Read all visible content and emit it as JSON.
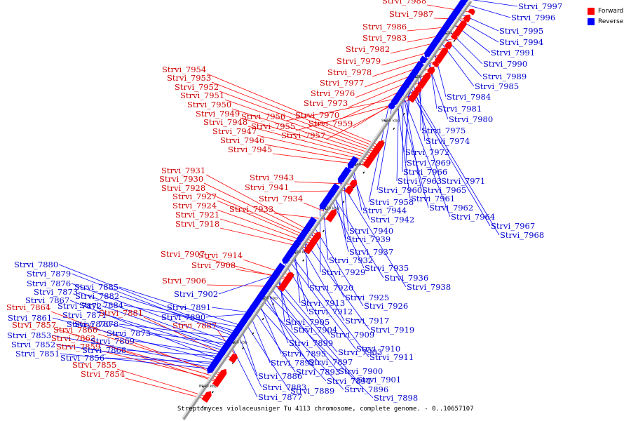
{
  "legend": [
    {
      "label": "Forward",
      "color": "#ff0000"
    },
    {
      "label": "Reverse",
      "color": "#0000ff"
    }
  ],
  "caption": "Streptomyces violaceusniger Tu 4113 chromosome, complete genome. - 0..10657107",
  "colors": {
    "forward": "#ff0000",
    "reverse": "#0000ff",
    "axis": "#999999",
    "forward_text": "#cc0000",
    "reverse_text": "#0000cc"
  },
  "ticks": [
    "8940 kbp",
    "8960 kbp",
    "8980 kbp",
    "9000 kbp",
    "9020 kbp",
    "9040 kbp",
    "9060 kbp",
    "9080 kbp",
    "9100 kbp",
    "9120 kbp"
  ],
  "forward_genes": [
    "Strvi_7988",
    "Strvi_7987",
    "Strvi_7986",
    "Strvi_7983",
    "Strvi_7982",
    "Strvi_7979",
    "Strvi_7978",
    "Strvi_7977",
    "Strvi_7976",
    "Strvi_7973",
    "Strvi_7970",
    "Strvi_7959",
    "Strvi_7957",
    "Strvi_7956",
    "Strvi_7955",
    "Strvi_7954",
    "Strvi_7953",
    "Strvi_7952",
    "Strvi_7951",
    "Strvi_7950",
    "Strvi_7949",
    "Strvi_7948",
    "Strvi_7947",
    "Strvi_7946",
    "Strvi_7945",
    "Strvi_7943",
    "Strvi_7941",
    "Strvi_7934",
    "Strvi_7933",
    "Strvi_7931",
    "Strvi_7930",
    "Strvi_7928",
    "Strvi_7927",
    "Strvi_7924",
    "Strvi_7921",
    "Strvi_7918",
    "Strvi_7914",
    "Strvi_7908",
    "Strvi_7907",
    "Strvi_7906",
    "Strvi_7887",
    "Strvi_7881",
    "Strvi_7866",
    "Strvi_7864",
    "Strvi_7862",
    "Strvi_7859",
    "Strvi_7857",
    "Strvi_7855",
    "Strvi_7854"
  ],
  "reverse_genes": [
    "Strvi_7997",
    "Strvi_7996",
    "Strvi_7995",
    "Strvi_7994",
    "Strvi_7991",
    "Strvi_7990",
    "Strvi_7989",
    "Strvi_7985",
    "Strvi_7984",
    "Strvi_7981",
    "Strvi_7980",
    "Strvi_7975",
    "Strvi_7974",
    "Strvi_7972",
    "Strvi_7971",
    "Strvi_7969",
    "Strvi_7968",
    "Strvi_7967",
    "Strvi_7966",
    "Strvi_7965",
    "Strvi_7964",
    "Strvi_7963",
    "Strvi_7962",
    "Strvi_7961",
    "Strvi_7960",
    "Strvi_7958",
    "Strvi_7944",
    "Strvi_7942",
    "Strvi_7940",
    "Strvi_7939",
    "Strvi_7938",
    "Strvi_7937",
    "Strvi_7936",
    "Strvi_7935",
    "Strvi_7932",
    "Strvi_7929",
    "Strvi_7926",
    "Strvi_7925",
    "Strvi_7920",
    "Strvi_7919",
    "Strvi_7917",
    "Strvi_7913",
    "Strvi_7912",
    "Strvi_7911",
    "Strvi_7910",
    "Strvi_7909",
    "Strvi_7905",
    "Strvi_7904",
    "Strvi_7903",
    "Strvi_7902",
    "Strvi_7901",
    "Strvi_7900",
    "Strvi_7899",
    "Strvi_7898",
    "Strvi_7897",
    "Strvi_7896",
    "Strvi_7895",
    "Strvi_7894",
    "Strvi_7893",
    "Strvi_7892",
    "Strvi_7891",
    "Strvi_7890",
    "Strvi_7889",
    "Strvi_7886",
    "Strvi_7885",
    "Strvi_7884",
    "Strvi_7883",
    "Strvi_7882",
    "Strvi_7880",
    "Strvi_7879",
    "Strvi_7878",
    "Strvi_7877",
    "Strvi_7876",
    "Strvi_7875",
    "Strvi_7873",
    "Strvi_7872",
    "Strvi_7871",
    "Strvi_7870",
    "Strvi_7869",
    "Strvi_7868",
    "Strvi_7867",
    "Strvi_7861",
    "Strvi_7856",
    "Strvi_7853",
    "Strvi_7852",
    "Strvi_7851"
  ]
}
